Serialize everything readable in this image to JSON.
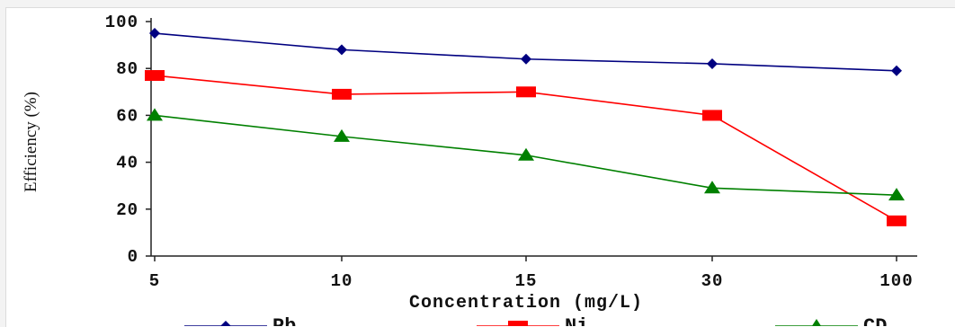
{
  "chart_data": {
    "type": "line",
    "categories": [
      "5",
      "10",
      "15",
      "30",
      "100"
    ],
    "xlabel": "Concentration (mg/L)",
    "ylabel": "Efficiency (%)",
    "ylim": [
      0,
      100
    ],
    "yticks": [
      "0",
      "20",
      "40",
      "60",
      "80",
      "100"
    ],
    "grid": false,
    "legend_position": "bottom",
    "series": [
      {
        "name": "Pb",
        "values": [
          95,
          88,
          84,
          82,
          79
        ],
        "color": "#000080",
        "marker": "diamond"
      },
      {
        "name": "Ni",
        "values": [
          77,
          69,
          70,
          60,
          15
        ],
        "color": "#ff0000",
        "marker": "square"
      },
      {
        "name": "CD",
        "values": [
          60,
          51,
          43,
          29,
          26
        ],
        "color": "#008000",
        "marker": "triangle"
      }
    ]
  }
}
